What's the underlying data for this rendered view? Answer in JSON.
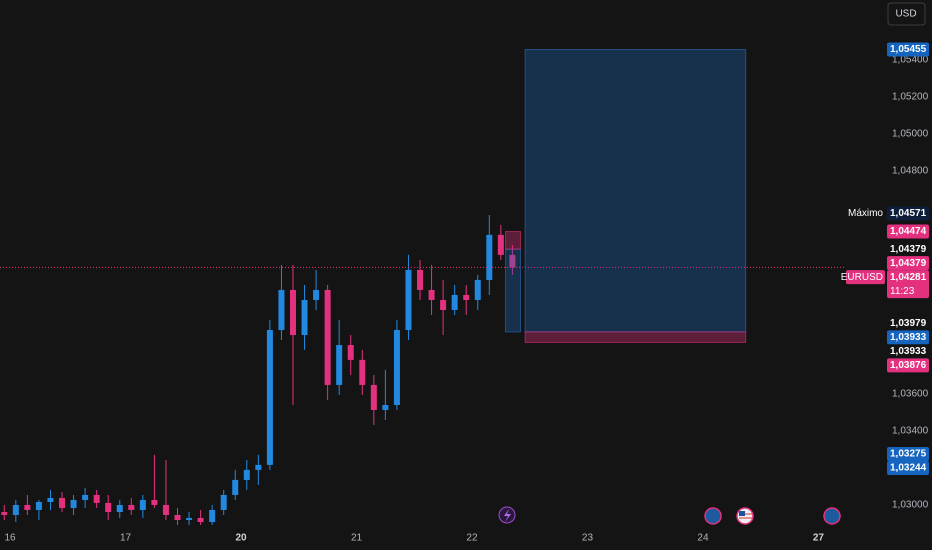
{
  "chart_data": {
    "type": "candlestick",
    "currency": "USD",
    "up_color": "#2389e0",
    "down_color": "#e4317f",
    "xlim": [
      -0.087,
      7.23
    ],
    "ylim": [
      1.02892,
      1.05722
    ],
    "xticks": [
      {
        "value": 0,
        "label": "16"
      },
      {
        "value": 1,
        "label": "17"
      },
      {
        "value": 2,
        "label": "20",
        "bold": true
      },
      {
        "value": 3,
        "label": "21"
      },
      {
        "value": 4,
        "label": "22"
      },
      {
        "value": 5,
        "label": "23"
      },
      {
        "value": 6,
        "label": "24"
      },
      {
        "value": 7,
        "label": "27",
        "bold": true
      }
    ],
    "yticks": [
      {
        "value": 1.03,
        "label": "1,03000"
      },
      {
        "value": 1.034,
        "label": "1,03400"
      },
      {
        "value": 1.036,
        "label": "1,03600"
      },
      {
        "value": 1.048,
        "label": "1,04800"
      },
      {
        "value": 1.05,
        "label": "1,05000"
      },
      {
        "value": 1.052,
        "label": "1,05200"
      },
      {
        "value": 1.054,
        "label": "1,05400"
      }
    ],
    "x": [
      -0.05,
      0.05,
      0.15,
      0.25,
      0.35,
      0.45,
      0.55,
      0.65,
      0.75,
      0.85,
      0.95,
      1.05,
      1.15,
      1.25,
      1.35,
      1.45,
      1.55,
      1.65,
      1.75,
      1.85,
      1.95,
      2.05,
      2.15,
      2.25,
      2.35,
      2.45,
      2.55,
      2.65,
      2.75,
      2.85,
      2.95,
      3.05,
      3.15,
      3.25,
      3.35,
      3.45,
      3.55,
      3.65,
      3.75,
      3.85,
      3.95,
      4.05,
      4.15,
      4.25,
      4.35
    ],
    "open": [
      1.02962,
      1.02946,
      1.03,
      1.02973,
      1.03016,
      1.03038,
      1.02984,
      1.03027,
      1.03054,
      1.03011,
      1.02962,
      1.03,
      1.02973,
      1.03027,
      1.03,
      1.02946,
      1.02919,
      1.0293,
      1.02908,
      1.02973,
      1.03054,
      1.03135,
      1.03189,
      1.03216,
      1.03943,
      1.04159,
      1.03916,
      1.04105,
      1.04159,
      1.03647,
      1.03862,
      1.03782,
      1.03647,
      1.03512,
      1.03539,
      1.03943,
      1.04267,
      1.04159,
      1.04105,
      1.04051,
      1.04132,
      1.04105,
      1.04213,
      1.04456,
      1.04348
    ],
    "high": [
      1.03,
      1.03027,
      1.03054,
      1.03027,
      1.03081,
      1.0307,
      1.03054,
      1.03092,
      1.03081,
      1.03054,
      1.03027,
      1.03038,
      1.03054,
      1.0327,
      1.03243,
      1.02984,
      1.02962,
      1.02973,
      1.03,
      1.03081,
      1.03189,
      1.03243,
      1.0327,
      1.03997,
      1.04294,
      1.04294,
      1.04186,
      1.04267,
      1.04186,
      1.03997,
      1.03916,
      1.03836,
      1.03701,
      1.03728,
      1.03997,
      1.04348,
      1.04321,
      1.04294,
      1.04213,
      1.04186,
      1.04186,
      1.0424,
      1.04563,
      1.0451,
      1.04402
    ],
    "low": [
      1.02919,
      1.02908,
      1.02946,
      1.02919,
      1.02973,
      1.02962,
      1.02946,
      1.02984,
      1.02984,
      1.02919,
      1.0293,
      1.02946,
      1.0293,
      1.02984,
      1.02919,
      1.02892,
      1.02892,
      1.02892,
      1.02892,
      1.02946,
      1.03027,
      1.03081,
      1.03108,
      1.03189,
      1.03889,
      1.03539,
      1.03836,
      1.04051,
      1.03566,
      1.03593,
      1.03701,
      1.03593,
      1.03431,
      1.03458,
      1.03512,
      1.03889,
      1.04105,
      1.04024,
      1.03916,
      1.04024,
      1.04024,
      1.04051,
      1.04132,
      1.04321,
      1.0424
    ],
    "close": [
      1.02946,
      1.03,
      1.02973,
      1.03016,
      1.03038,
      1.02984,
      1.03027,
      1.03054,
      1.03011,
      1.02962,
      1.03,
      1.02973,
      1.03027,
      1.03,
      1.02946,
      1.02919,
      1.0293,
      1.02908,
      1.02973,
      1.03054,
      1.03135,
      1.03189,
      1.03216,
      1.03943,
      1.04159,
      1.03916,
      1.04105,
      1.04159,
      1.03647,
      1.03862,
      1.03782,
      1.03647,
      1.03512,
      1.03539,
      1.03943,
      1.04267,
      1.04159,
      1.04105,
      1.04051,
      1.04132,
      1.04105,
      1.04213,
      1.04456,
      1.04348,
      1.04281
    ],
    "last": 1.04281,
    "positions": [
      {
        "x_start": 4.46,
        "x_end": 6.37,
        "entry": 1.03933,
        "target": 1.05455,
        "stop": 1.03876
      },
      {
        "x_start": 4.29,
        "x_end": 4.42,
        "entry": 1.04379,
        "target": 1.03933,
        "stop": 1.04474
      }
    ],
    "price_tags": [
      {
        "value": 1.05455,
        "label": "1,05455",
        "kind": "blue"
      },
      {
        "value": 1.04571,
        "label": "1,04571",
        "title": "Máximo",
        "kind": "dark"
      },
      {
        "value": 1.04474,
        "label": "1,04474",
        "kind": "pink"
      },
      {
        "value": 1.04379,
        "label": "1,04379",
        "kind": "white"
      },
      {
        "value": 1.04379,
        "label": "1,04379",
        "kind": "pink"
      },
      {
        "value": 1.04281,
        "label": "1,04281",
        "title": "EURUSD",
        "countdown": "11:23",
        "kind": "pink"
      },
      {
        "value": 1.03979,
        "label": "1,03979",
        "kind": "white"
      },
      {
        "value": 1.03933,
        "label": "1,03933",
        "kind": "blue"
      },
      {
        "value": 1.03933,
        "label": "1,03933",
        "kind": "white"
      },
      {
        "value": 1.03876,
        "label": "1,03876",
        "kind": "pink"
      },
      {
        "value": 1.03275,
        "label": "1,03275",
        "kind": "blue"
      },
      {
        "value": 1.03244,
        "label": "1,03244",
        "kind": "blue"
      }
    ]
  }
}
